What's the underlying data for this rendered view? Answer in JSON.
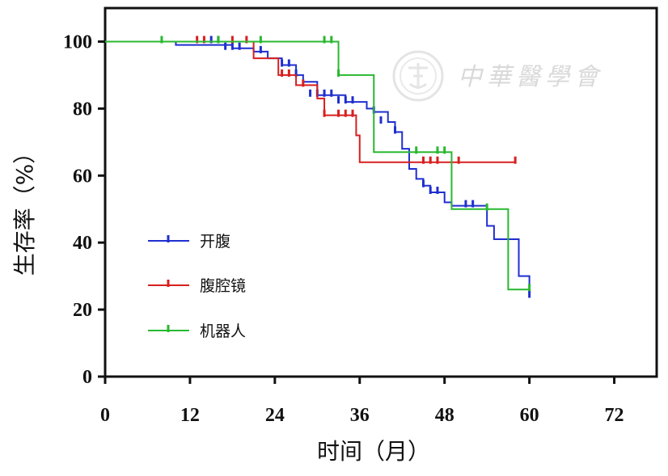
{
  "chart_data": {
    "type": "line",
    "step": true,
    "xlabel": "时间（月）",
    "ylabel": "生存率（%）",
    "xlim": [
      0,
      78
    ],
    "ylim": [
      0,
      110
    ],
    "x_ticks": [
      0,
      12,
      24,
      36,
      48,
      60,
      72
    ],
    "y_ticks": [
      0,
      20,
      40,
      60,
      80,
      100
    ],
    "grid": false,
    "legend_position": "left-middle",
    "watermark": "中華醫學會",
    "series": [
      {
        "name": "开腹",
        "color": "#1f2fcf",
        "steps": [
          [
            0,
            100
          ],
          [
            10,
            99
          ],
          [
            18,
            98
          ],
          [
            21,
            97
          ],
          [
            23,
            95
          ],
          [
            25,
            93
          ],
          [
            27,
            90
          ],
          [
            28,
            88
          ],
          [
            30,
            84
          ],
          [
            32,
            84
          ],
          [
            34,
            82
          ],
          [
            37,
            80
          ],
          [
            38,
            79
          ],
          [
            40,
            76
          ],
          [
            41,
            73
          ],
          [
            42,
            68
          ],
          [
            43,
            62
          ],
          [
            44,
            59
          ],
          [
            45,
            57
          ],
          [
            46,
            55
          ],
          [
            48,
            52
          ],
          [
            49,
            51
          ],
          [
            51,
            51
          ],
          [
            54,
            45
          ],
          [
            55,
            41
          ],
          [
            58,
            41
          ],
          [
            58.5,
            30
          ],
          [
            60,
            24
          ]
        ],
        "censored": [
          [
            15,
            100
          ],
          [
            16,
            100
          ],
          [
            17,
            98
          ],
          [
            18,
            98
          ],
          [
            19,
            98
          ],
          [
            22,
            97
          ],
          [
            25,
            93
          ],
          [
            26,
            93
          ],
          [
            27,
            90
          ],
          [
            29,
            84
          ],
          [
            30,
            84
          ],
          [
            31,
            84
          ],
          [
            32,
            84
          ],
          [
            33,
            82
          ],
          [
            34,
            82
          ],
          [
            35,
            82
          ],
          [
            38,
            79
          ],
          [
            39,
            76
          ],
          [
            41,
            73
          ],
          [
            45,
            57
          ],
          [
            46,
            55
          ],
          [
            47,
            55
          ],
          [
            51,
            51
          ],
          [
            52,
            51
          ],
          [
            60,
            24
          ]
        ]
      },
      {
        "name": "腹腔镜",
        "color": "#d81f1f",
        "steps": [
          [
            0,
            100
          ],
          [
            21,
            100
          ],
          [
            21,
            95
          ],
          [
            24,
            95
          ],
          [
            24.5,
            90
          ],
          [
            26,
            90
          ],
          [
            27,
            87
          ],
          [
            29,
            87
          ],
          [
            30,
            83
          ],
          [
            31,
            78
          ],
          [
            34,
            78
          ],
          [
            35,
            78
          ],
          [
            35.5,
            72
          ],
          [
            36,
            64
          ],
          [
            58,
            64
          ]
        ],
        "censored": [
          [
            13,
            100
          ],
          [
            14,
            100
          ],
          [
            18,
            100
          ],
          [
            20,
            100
          ],
          [
            25,
            90
          ],
          [
            26,
            90
          ],
          [
            28,
            87
          ],
          [
            31,
            78
          ],
          [
            33,
            78
          ],
          [
            34,
            78
          ],
          [
            35,
            78
          ],
          [
            45,
            64
          ],
          [
            46,
            64
          ],
          [
            47,
            64
          ],
          [
            50,
            64
          ],
          [
            58,
            64
          ]
        ]
      },
      {
        "name": "机器人",
        "color": "#29b82f",
        "steps": [
          [
            0,
            100
          ],
          [
            33,
            100
          ],
          [
            33,
            90
          ],
          [
            37,
            90
          ],
          [
            38,
            67
          ],
          [
            49,
            67
          ],
          [
            49,
            50
          ],
          [
            57,
            50
          ],
          [
            57,
            26
          ],
          [
            60,
            26
          ]
        ],
        "censored": [
          [
            8,
            100
          ],
          [
            16,
            100
          ],
          [
            22,
            100
          ],
          [
            31,
            100
          ],
          [
            32,
            100
          ],
          [
            33,
            90
          ],
          [
            44,
            67
          ],
          [
            47,
            67
          ],
          [
            48,
            67
          ],
          [
            54,
            50
          ],
          [
            60,
            26
          ]
        ]
      }
    ]
  }
}
